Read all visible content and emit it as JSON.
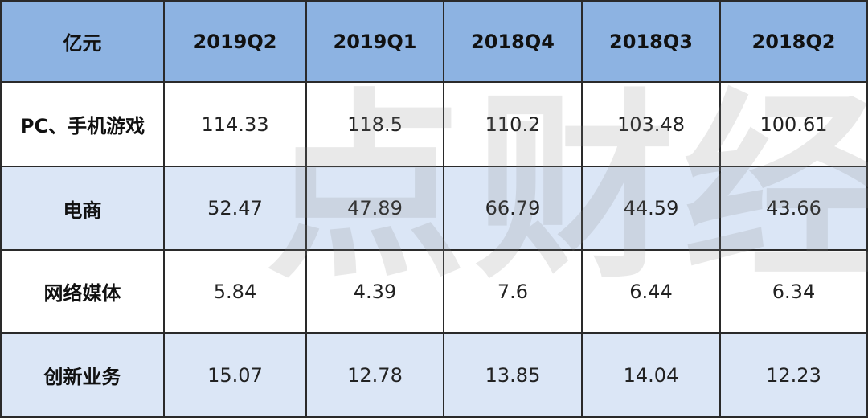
{
  "watermark": "点财经",
  "table": {
    "header": [
      "亿元",
      "2019Q2",
      "2019Q1",
      "2018Q4",
      "2018Q3",
      "2018Q2"
    ],
    "rows": [
      [
        "PC、手机游戏",
        114.33,
        118.5,
        110.2,
        103.48,
        100.61
      ],
      [
        "电商",
        52.47,
        47.89,
        66.79,
        44.59,
        43.66
      ],
      [
        "网络媒体",
        5.84,
        4.39,
        7.6,
        6.44,
        6.34
      ],
      [
        "创新业务",
        15.07,
        12.78,
        13.85,
        14.04,
        12.23
      ]
    ]
  }
}
